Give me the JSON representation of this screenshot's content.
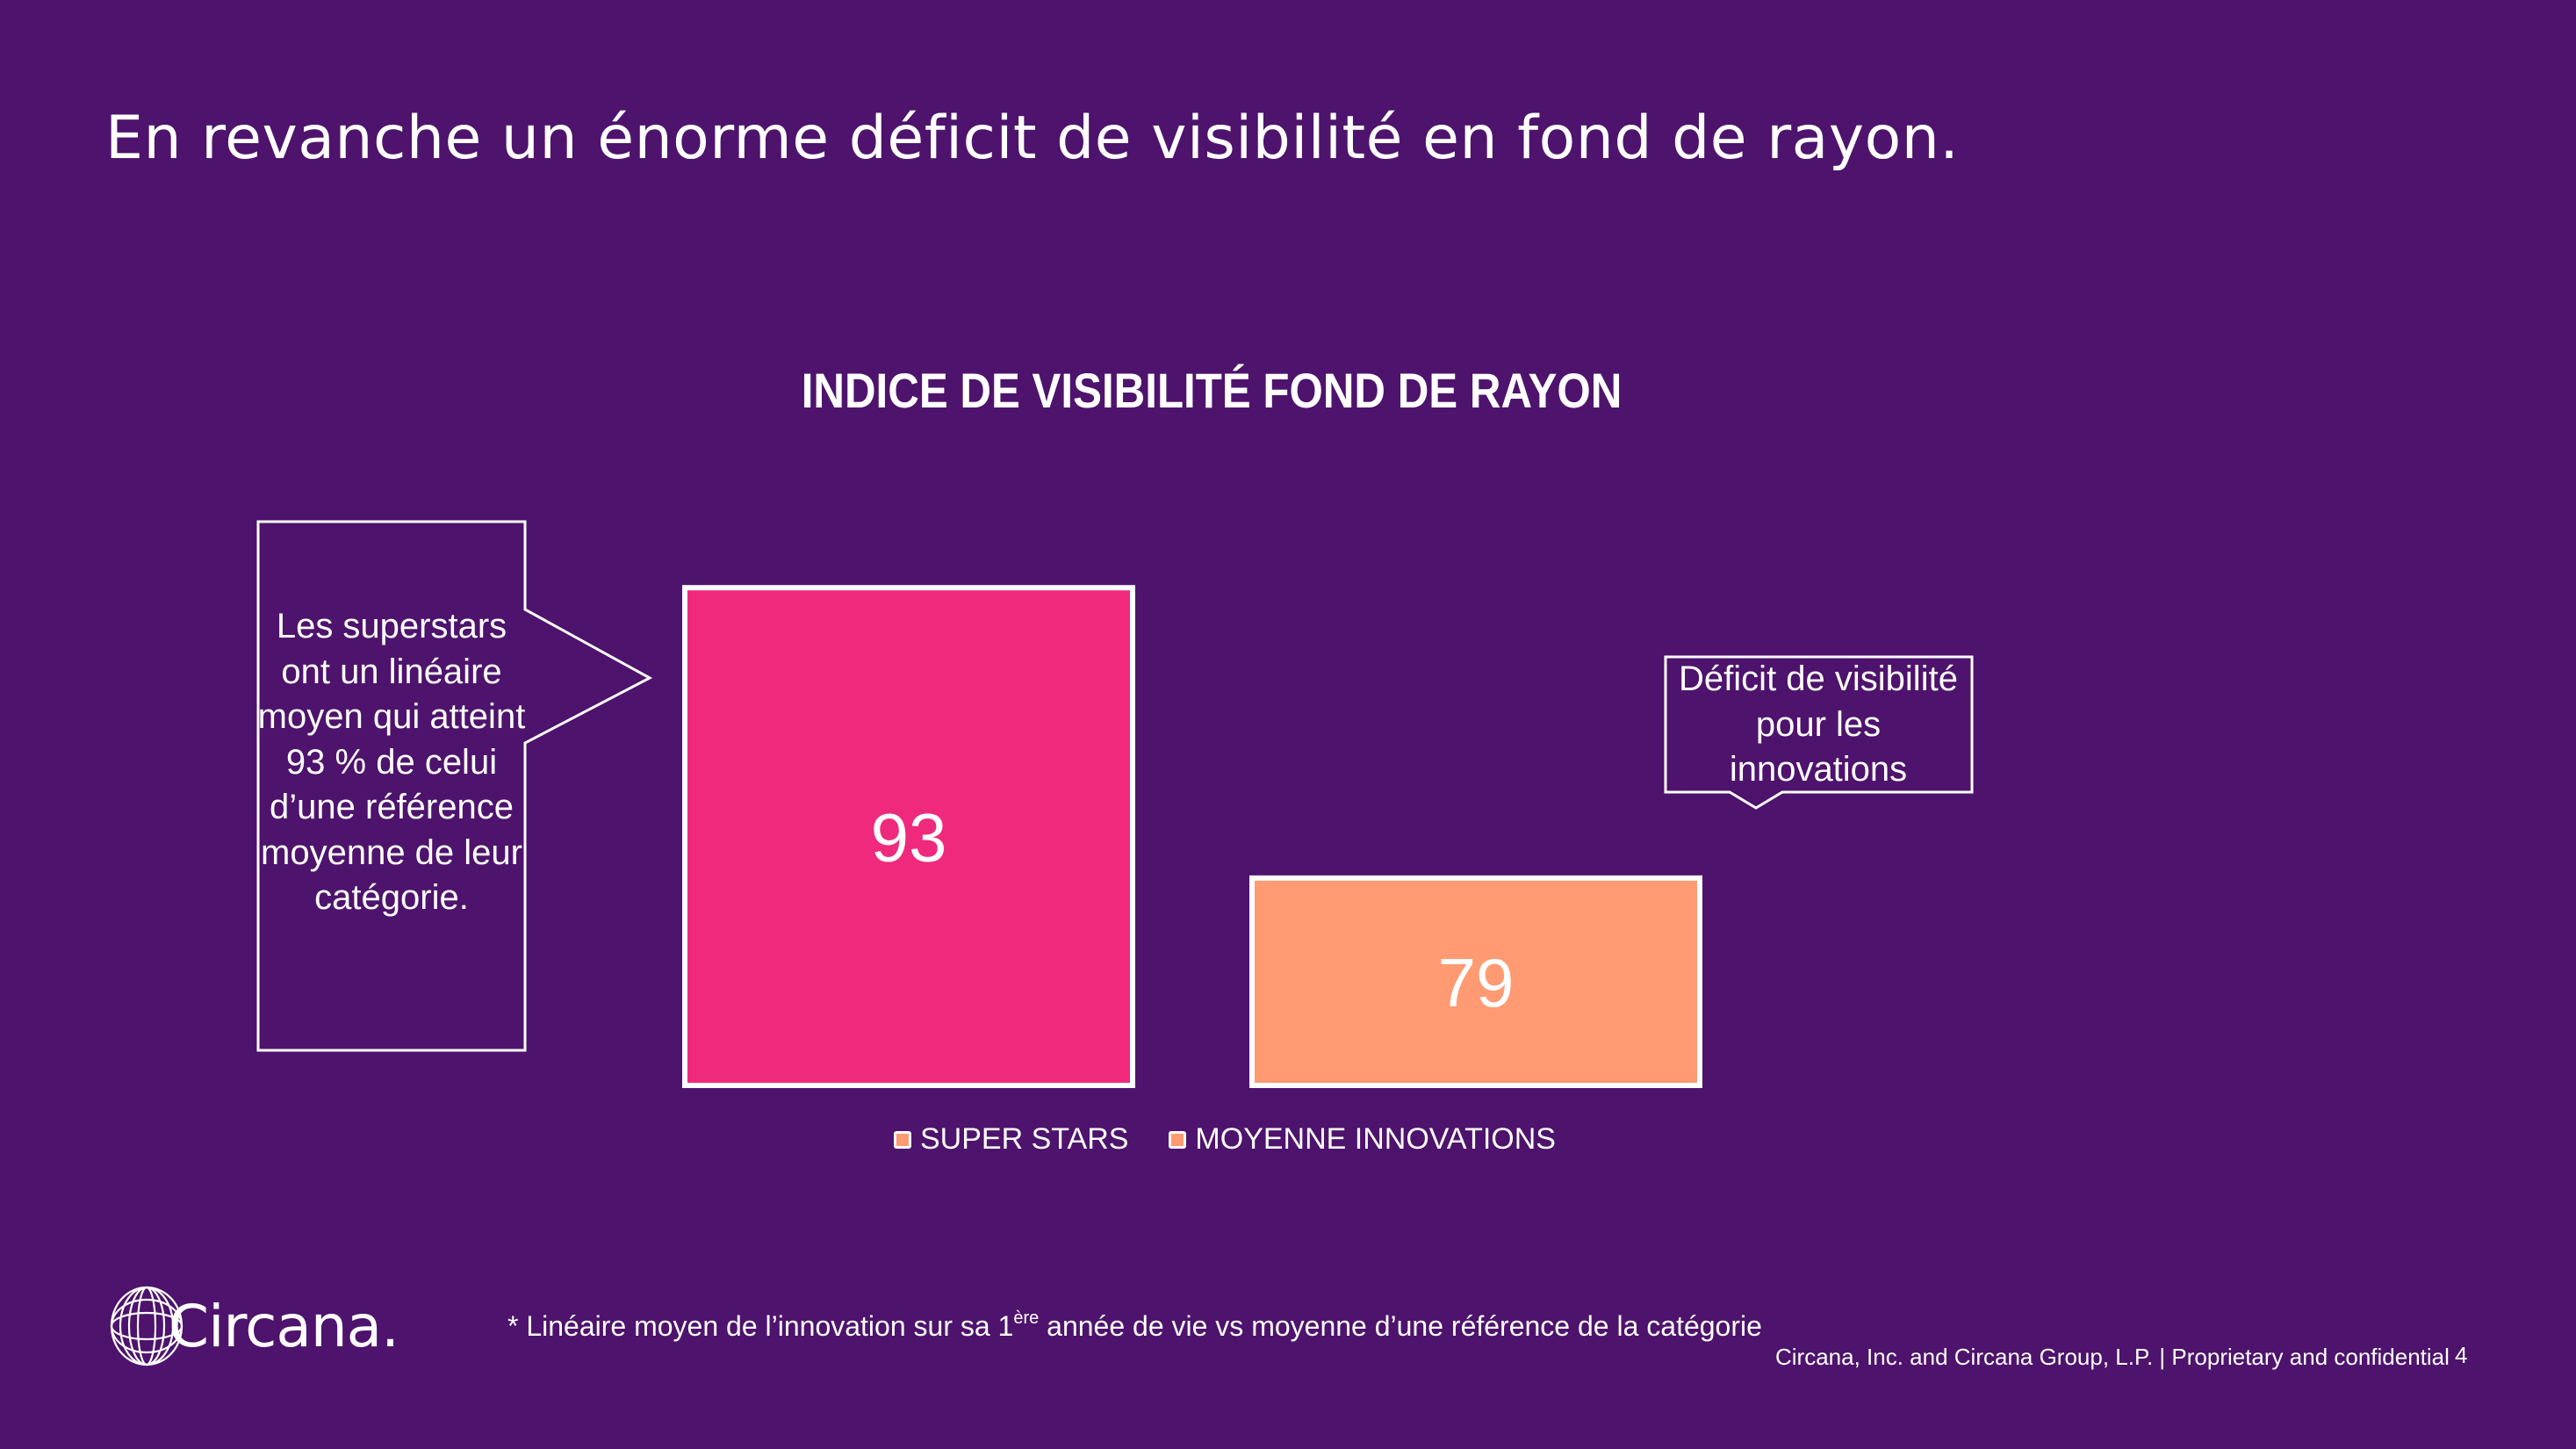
{
  "slide": {
    "title": "En revanche un énorme déficit de visibilité en fond de rayon."
  },
  "chart_data": {
    "type": "bar",
    "title": "INDICE DE VISIBILITÉ FOND DE RAYON",
    "categories": [
      "SUPER STARS",
      "MOYENNE INNOVATIONS"
    ],
    "values": [
      93,
      79
    ],
    "colors": [
      "#ef2a7c",
      "#ff9a72"
    ],
    "ylim": [
      69,
      95
    ],
    "data_labels": [
      "93",
      "79"
    ],
    "legend": [
      "SUPER STARS",
      "MOYENNE INNOVATIONS"
    ],
    "legend_position": "bottom",
    "grid": false
  },
  "callouts": {
    "left": "Les superstars ont un linéaire moyen qui atteint 93 % de celui d’une référence moyenne de leur catégorie.",
    "right": "Déficit de visibilité pour les innovations"
  },
  "footer": {
    "note_prefix": "* Linéaire moyen de l’innovation sur sa 1",
    "note_sup": "ère",
    "note_suffix": " année de vie vs moyenne d’une référence de la catégorie",
    "logo_text": "Circana.",
    "copyright": "Circana, Inc. and Circana Group, L.P. |  Proprietary and confidential",
    "page_number": "4"
  },
  "colors": {
    "background": "#4e136c",
    "super_stars": "#ef2a7c",
    "innovations": "#ff9a72",
    "text": "#ffffff"
  },
  "icons": {
    "logo_mark": "globe-wireframe-icon"
  }
}
